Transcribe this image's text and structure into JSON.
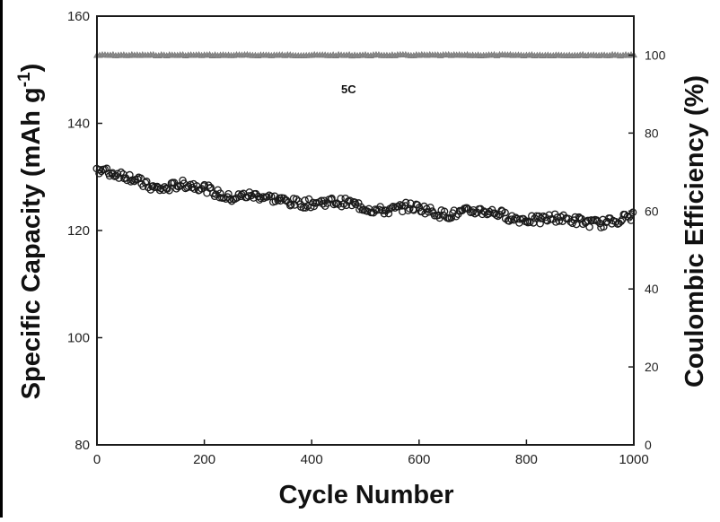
{
  "chart_data": {
    "type": "scatter",
    "title": "",
    "annotation": "5C",
    "x": {
      "label": "Cycle Number",
      "range": [
        0,
        1000
      ],
      "ticks": [
        0,
        200,
        400,
        600,
        800,
        1000
      ],
      "tick_labels": [
        "0",
        "200",
        "400",
        "600",
        "800",
        "1000"
      ]
    },
    "y_left": {
      "label": "Specific Capacity (mAh g",
      "label_sup": "-1",
      "label_close": ")",
      "range": [
        80,
        160
      ],
      "ticks": [
        80,
        100,
        120,
        140,
        160
      ],
      "tick_labels": [
        "80",
        "100",
        "120",
        "140",
        "160"
      ]
    },
    "y_right": {
      "label": "Coulombic Efficiency (%)",
      "range": [
        0,
        110
      ],
      "ticks": [
        0,
        20,
        40,
        60,
        80,
        100
      ],
      "tick_labels": [
        "0",
        "20",
        "40",
        "60",
        "80",
        "100"
      ]
    },
    "grid": false,
    "legend": "none",
    "series": [
      {
        "axis": "left",
        "marker": "open-circle",
        "color": "#1a1a1a",
        "points": [
          [
            0,
            131.5
          ],
          [
            25,
            130.2
          ],
          [
            50,
            130.0
          ],
          [
            75,
            129.5
          ],
          [
            100,
            128.6
          ],
          [
            125,
            128.0
          ],
          [
            150,
            128.3
          ],
          [
            175,
            128.0
          ],
          [
            200,
            127.8
          ],
          [
            225,
            127.2
          ],
          [
            250,
            126.5
          ],
          [
            275,
            126.6
          ],
          [
            300,
            126.0
          ],
          [
            325,
            125.6
          ],
          [
            350,
            125.6
          ],
          [
            375,
            125.6
          ],
          [
            400,
            125.4
          ],
          [
            425,
            125.1
          ],
          [
            450,
            124.8
          ],
          [
            475,
            124.8
          ],
          [
            500,
            124.6
          ],
          [
            525,
            124.2
          ],
          [
            550,
            123.9
          ],
          [
            575,
            124.0
          ],
          [
            600,
            123.8
          ],
          [
            625,
            123.6
          ],
          [
            650,
            123.4
          ],
          [
            675,
            123.6
          ],
          [
            700,
            123.5
          ],
          [
            725,
            123.0
          ],
          [
            750,
            122.9
          ],
          [
            775,
            122.6
          ],
          [
            800,
            122.6
          ],
          [
            825,
            122.0
          ],
          [
            850,
            122.0
          ],
          [
            875,
            121.6
          ],
          [
            900,
            121.8
          ],
          [
            925,
            121.8
          ],
          [
            950,
            121.8
          ],
          [
            975,
            122.0
          ],
          [
            1000,
            122.2
          ]
        ]
      },
      {
        "axis": "right",
        "marker": "triangle",
        "color": "#8a8a8a",
        "points": [
          [
            0,
            100
          ],
          [
            100,
            100
          ],
          [
            200,
            100
          ],
          [
            300,
            100
          ],
          [
            400,
            100
          ],
          [
            500,
            100
          ],
          [
            600,
            100
          ],
          [
            700,
            100
          ],
          [
            800,
            100
          ],
          [
            900,
            100
          ],
          [
            1000,
            100
          ]
        ]
      }
    ]
  }
}
